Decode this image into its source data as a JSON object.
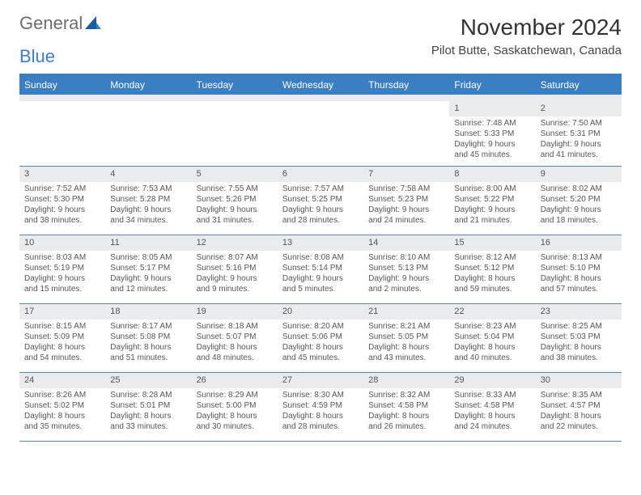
{
  "logo": {
    "word1": "General",
    "word2": "Blue"
  },
  "title": "November 2024",
  "location": "Pilot Butte, Saskatchewan, Canada",
  "day_names": [
    "Sunday",
    "Monday",
    "Tuesday",
    "Wednesday",
    "Thursday",
    "Friday",
    "Saturday"
  ],
  "colors": {
    "primary": "#3a7fc3",
    "header_bg": "#3a7fc3",
    "daynum_bg": "#e9ebec",
    "text": "#555555",
    "rule": "#5f84aa"
  },
  "weeks": [
    [
      null,
      null,
      null,
      null,
      null,
      {
        "n": "1",
        "sr": "Sunrise: 7:48 AM",
        "ss": "Sunset: 5:33 PM",
        "d1": "Daylight: 9 hours",
        "d2": "and 45 minutes."
      },
      {
        "n": "2",
        "sr": "Sunrise: 7:50 AM",
        "ss": "Sunset: 5:31 PM",
        "d1": "Daylight: 9 hours",
        "d2": "and 41 minutes."
      }
    ],
    [
      {
        "n": "3",
        "sr": "Sunrise: 7:52 AM",
        "ss": "Sunset: 5:30 PM",
        "d1": "Daylight: 9 hours",
        "d2": "and 38 minutes."
      },
      {
        "n": "4",
        "sr": "Sunrise: 7:53 AM",
        "ss": "Sunset: 5:28 PM",
        "d1": "Daylight: 9 hours",
        "d2": "and 34 minutes."
      },
      {
        "n": "5",
        "sr": "Sunrise: 7:55 AM",
        "ss": "Sunset: 5:26 PM",
        "d1": "Daylight: 9 hours",
        "d2": "and 31 minutes."
      },
      {
        "n": "6",
        "sr": "Sunrise: 7:57 AM",
        "ss": "Sunset: 5:25 PM",
        "d1": "Daylight: 9 hours",
        "d2": "and 28 minutes."
      },
      {
        "n": "7",
        "sr": "Sunrise: 7:58 AM",
        "ss": "Sunset: 5:23 PM",
        "d1": "Daylight: 9 hours",
        "d2": "and 24 minutes."
      },
      {
        "n": "8",
        "sr": "Sunrise: 8:00 AM",
        "ss": "Sunset: 5:22 PM",
        "d1": "Daylight: 9 hours",
        "d2": "and 21 minutes."
      },
      {
        "n": "9",
        "sr": "Sunrise: 8:02 AM",
        "ss": "Sunset: 5:20 PM",
        "d1": "Daylight: 9 hours",
        "d2": "and 18 minutes."
      }
    ],
    [
      {
        "n": "10",
        "sr": "Sunrise: 8:03 AM",
        "ss": "Sunset: 5:19 PM",
        "d1": "Daylight: 9 hours",
        "d2": "and 15 minutes."
      },
      {
        "n": "11",
        "sr": "Sunrise: 8:05 AM",
        "ss": "Sunset: 5:17 PM",
        "d1": "Daylight: 9 hours",
        "d2": "and 12 minutes."
      },
      {
        "n": "12",
        "sr": "Sunrise: 8:07 AM",
        "ss": "Sunset: 5:16 PM",
        "d1": "Daylight: 9 hours",
        "d2": "and 9 minutes."
      },
      {
        "n": "13",
        "sr": "Sunrise: 8:08 AM",
        "ss": "Sunset: 5:14 PM",
        "d1": "Daylight: 9 hours",
        "d2": "and 5 minutes."
      },
      {
        "n": "14",
        "sr": "Sunrise: 8:10 AM",
        "ss": "Sunset: 5:13 PM",
        "d1": "Daylight: 9 hours",
        "d2": "and 2 minutes."
      },
      {
        "n": "15",
        "sr": "Sunrise: 8:12 AM",
        "ss": "Sunset: 5:12 PM",
        "d1": "Daylight: 8 hours",
        "d2": "and 59 minutes."
      },
      {
        "n": "16",
        "sr": "Sunrise: 8:13 AM",
        "ss": "Sunset: 5:10 PM",
        "d1": "Daylight: 8 hours",
        "d2": "and 57 minutes."
      }
    ],
    [
      {
        "n": "17",
        "sr": "Sunrise: 8:15 AM",
        "ss": "Sunset: 5:09 PM",
        "d1": "Daylight: 8 hours",
        "d2": "and 54 minutes."
      },
      {
        "n": "18",
        "sr": "Sunrise: 8:17 AM",
        "ss": "Sunset: 5:08 PM",
        "d1": "Daylight: 8 hours",
        "d2": "and 51 minutes."
      },
      {
        "n": "19",
        "sr": "Sunrise: 8:18 AM",
        "ss": "Sunset: 5:07 PM",
        "d1": "Daylight: 8 hours",
        "d2": "and 48 minutes."
      },
      {
        "n": "20",
        "sr": "Sunrise: 8:20 AM",
        "ss": "Sunset: 5:06 PM",
        "d1": "Daylight: 8 hours",
        "d2": "and 45 minutes."
      },
      {
        "n": "21",
        "sr": "Sunrise: 8:21 AM",
        "ss": "Sunset: 5:05 PM",
        "d1": "Daylight: 8 hours",
        "d2": "and 43 minutes."
      },
      {
        "n": "22",
        "sr": "Sunrise: 8:23 AM",
        "ss": "Sunset: 5:04 PM",
        "d1": "Daylight: 8 hours",
        "d2": "and 40 minutes."
      },
      {
        "n": "23",
        "sr": "Sunrise: 8:25 AM",
        "ss": "Sunset: 5:03 PM",
        "d1": "Daylight: 8 hours",
        "d2": "and 38 minutes."
      }
    ],
    [
      {
        "n": "24",
        "sr": "Sunrise: 8:26 AM",
        "ss": "Sunset: 5:02 PM",
        "d1": "Daylight: 8 hours",
        "d2": "and 35 minutes."
      },
      {
        "n": "25",
        "sr": "Sunrise: 8:28 AM",
        "ss": "Sunset: 5:01 PM",
        "d1": "Daylight: 8 hours",
        "d2": "and 33 minutes."
      },
      {
        "n": "26",
        "sr": "Sunrise: 8:29 AM",
        "ss": "Sunset: 5:00 PM",
        "d1": "Daylight: 8 hours",
        "d2": "and 30 minutes."
      },
      {
        "n": "27",
        "sr": "Sunrise: 8:30 AM",
        "ss": "Sunset: 4:59 PM",
        "d1": "Daylight: 8 hours",
        "d2": "and 28 minutes."
      },
      {
        "n": "28",
        "sr": "Sunrise: 8:32 AM",
        "ss": "Sunset: 4:58 PM",
        "d1": "Daylight: 8 hours",
        "d2": "and 26 minutes."
      },
      {
        "n": "29",
        "sr": "Sunrise: 8:33 AM",
        "ss": "Sunset: 4:58 PM",
        "d1": "Daylight: 8 hours",
        "d2": "and 24 minutes."
      },
      {
        "n": "30",
        "sr": "Sunrise: 8:35 AM",
        "ss": "Sunset: 4:57 PM",
        "d1": "Daylight: 8 hours",
        "d2": "and 22 minutes."
      }
    ]
  ]
}
